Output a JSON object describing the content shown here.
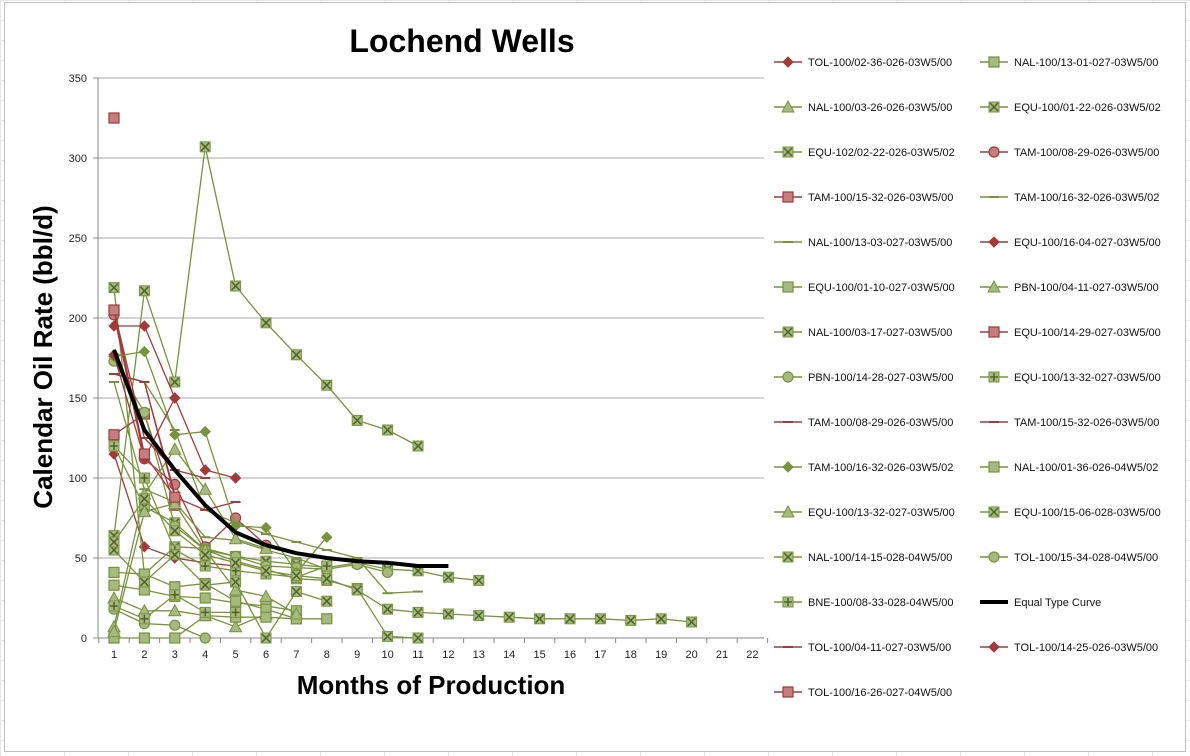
{
  "chart_data": {
    "type": "line",
    "title": "Lochend Wells",
    "xlabel": "Months of Production",
    "ylabel": "Calendar Oil Rate (bbl/d)",
    "xlim": [
      1,
      22
    ],
    "ylim": [
      0,
      350
    ],
    "y_ticks": [
      0,
      50,
      100,
      150,
      200,
      250,
      300,
      350
    ],
    "x_ticks": [
      1,
      2,
      3,
      4,
      5,
      6,
      7,
      8,
      9,
      10,
      11,
      12,
      13,
      14,
      15,
      16,
      17,
      18,
      19,
      20,
      21,
      22
    ],
    "gridlines": "horizontal",
    "legend_position": "right",
    "series": [
      {
        "name": "TOL-100/02-36-026-03W5/00",
        "color": "#a33a3a",
        "marker": "diamond",
        "x": [
          1,
          2,
          3,
          4,
          5
        ],
        "values": [
          115,
          57,
          50,
          47,
          45
        ]
      },
      {
        "name": "NAL-100/13-01-027-03W5/00",
        "color": "#77933c",
        "marker": "square",
        "x": [
          1,
          2,
          3,
          4,
          5,
          6,
          7
        ],
        "values": [
          33,
          30,
          26,
          25,
          22,
          20,
          17
        ]
      },
      {
        "name": "NAL-100/03-26-026-03W5/00",
        "color": "#77933c",
        "marker": "triangle",
        "x": [
          1,
          2,
          3,
          4,
          5,
          6
        ],
        "values": [
          25,
          17,
          17,
          14,
          7,
          15
        ]
      },
      {
        "name": "EQU-100/01-22-026-03W5/02",
        "color": "#77933c",
        "marker": "xbox",
        "x": [
          1,
          2,
          3,
          4,
          5,
          6,
          7,
          8,
          9,
          10,
          11,
          12,
          13
        ],
        "values": [
          219,
          40,
          57,
          56,
          51,
          48,
          46,
          44,
          47,
          43,
          42,
          38,
          36
        ]
      },
      {
        "name": "EQU-102/02-22-026-03W5/02",
        "color": "#77933c",
        "marker": "xbox",
        "x": [
          1,
          2,
          3,
          4,
          5,
          6,
          7,
          8,
          9,
          10,
          11
        ],
        "values": [
          64,
          217,
          160,
          307,
          220,
          197,
          177,
          158,
          136,
          130,
          120
        ]
      },
      {
        "name": "TAM-100/08-29-026-03W5/00",
        "color": "#a33a3a",
        "marker": "circle",
        "x": [
          1,
          2,
          3,
          4,
          5,
          6
        ],
        "values": [
          202,
          112,
          96,
          57,
          75,
          58
        ]
      },
      {
        "name": "TAM-100/15-32-026-03W5/00",
        "color": "#a33a3a",
        "marker": "square",
        "x": [
          1,
          2,
          3
        ],
        "values": [
          127,
          140,
          83
        ]
      },
      {
        "name": "TAM-100/16-32-026-03W5/02",
        "color": "#77933c",
        "marker": "dash",
        "x": [
          1,
          2,
          3,
          4,
          5,
          6,
          7,
          8
        ],
        "values": [
          160,
          93,
          85,
          63,
          61,
          55,
          50,
          43
        ]
      },
      {
        "name": "NAL-100/13-03-027-03W5/00",
        "color": "#77933c",
        "marker": "dash",
        "x": [
          1,
          2,
          3,
          4,
          5,
          6,
          7,
          8,
          9,
          10,
          11
        ],
        "values": [
          165,
          160,
          130,
          80,
          72,
          65,
          60,
          55,
          50,
          28,
          29
        ]
      },
      {
        "name": "EQU-100/16-04-027-03W5/00",
        "color": "#a33a3a",
        "marker": "diamond",
        "x": [
          1,
          2,
          3,
          4,
          5
        ],
        "values": [
          195,
          195,
          150,
          105,
          100
        ]
      },
      {
        "name": "EQU-100/01-10-027-03W5/00",
        "color": "#77933c",
        "marker": "square",
        "x": [
          1,
          2,
          3,
          4,
          5,
          6,
          7
        ],
        "values": [
          41,
          40,
          32,
          34,
          23,
          18,
          12
        ]
      },
      {
        "name": "PBN-100/04-11-027-03W5/00",
        "color": "#77933c",
        "marker": "triangle",
        "x": [
          1,
          2,
          3,
          4,
          5,
          6
        ],
        "values": [
          7,
          90,
          118,
          93,
          62,
          56
        ]
      },
      {
        "name": "NAL-100/03-17-027-03W5/00",
        "color": "#77933c",
        "marker": "xbox",
        "x": [
          1,
          2,
          3,
          4,
          5,
          6,
          7,
          8,
          9,
          10,
          11
        ],
        "values": [
          120,
          82,
          72,
          55,
          48,
          43,
          37,
          36,
          31,
          1,
          0
        ]
      },
      {
        "name": "EQU-100/14-29-027-03W5/00",
        "color": "#a33a3a",
        "marker": "square",
        "x": [
          1
        ],
        "values": [
          325
        ]
      },
      {
        "name": "PBN-100/14-28-027-03W5/00",
        "color": "#77933c",
        "marker": "circle",
        "x": [
          1,
          2,
          3,
          4,
          5,
          6,
          7,
          8,
          9,
          10
        ],
        "values": [
          173,
          141,
          70,
          55,
          51,
          45,
          44,
          43,
          46,
          41
        ]
      },
      {
        "name": "EQU-100/13-32-027-03W5/00",
        "color": "#77933c",
        "marker": "plus",
        "x": [
          1,
          2,
          3,
          4,
          5,
          6,
          7,
          8
        ],
        "values": [
          120,
          100,
          55,
          45,
          42,
          40,
          38,
          45
        ]
      },
      {
        "name": "TAM-100/08-29-026-03W5/00",
        "color": "#a33a3a",
        "marker": "dash",
        "x": [
          1,
          2,
          3,
          4,
          5
        ],
        "values": [
          165,
          160,
          88,
          80,
          85
        ]
      },
      {
        "name": "TAM-100/15-32-026-03W5/00",
        "color": "#a33a3a",
        "marker": "dash",
        "x": [
          1,
          2,
          3,
          4
        ],
        "values": [
          205,
          125,
          105,
          100
        ]
      },
      {
        "name": "TAM-100/16-32-026-03W5/02",
        "color": "#77933c",
        "marker": "diamond",
        "x": [
          1,
          2,
          3,
          4,
          5,
          6,
          7,
          8
        ],
        "values": [
          176,
          179,
          127,
          129,
          70,
          69,
          41,
          63
        ]
      },
      {
        "name": "NAL-100/01-36-026-04W5/02",
        "color": "#77933c",
        "marker": "square",
        "x": [
          1,
          2,
          3,
          4,
          5,
          6,
          7,
          8
        ],
        "values": [
          0,
          0,
          0,
          14,
          13,
          13,
          12,
          12
        ]
      },
      {
        "name": "EQU-100/13-32-027-03W5/00",
        "color": "#77933c",
        "marker": "triangle",
        "x": [
          1,
          2,
          3,
          4,
          5,
          6,
          7
        ],
        "values": [
          4,
          79,
          84,
          55,
          30,
          26,
          15
        ]
      },
      {
        "name": "EQU-100/15-06-028-03W5/00",
        "color": "#77933c",
        "marker": "xbox",
        "x": [
          1,
          2,
          3,
          4,
          5,
          6,
          7,
          8
        ],
        "values": [
          55,
          35,
          52,
          33,
          35,
          0,
          29,
          23
        ]
      },
      {
        "name": "NAL-100/14-15-028-04W5/00",
        "color": "#77933c",
        "marker": "xbox",
        "x": [
          1,
          2,
          3,
          4,
          5,
          6,
          7,
          8,
          9,
          10,
          11,
          12,
          13,
          14,
          15,
          16,
          17,
          18,
          19,
          20
        ],
        "values": [
          60,
          87,
          67,
          52,
          47,
          42,
          39,
          37,
          30,
          18,
          16,
          15,
          14,
          13,
          12,
          12,
          12,
          11,
          12,
          10
        ]
      },
      {
        "name": "TOL-100/15-34-028-04W5/00",
        "color": "#77933c",
        "marker": "circle",
        "x": [
          1,
          2,
          3,
          4
        ],
        "values": [
          18,
          9,
          8,
          0
        ]
      },
      {
        "name": "BNE-100/08-33-028-04W5/00",
        "color": "#77933c",
        "marker": "plus",
        "x": [
          1,
          2,
          3,
          4,
          5
        ],
        "values": [
          20,
          12,
          27,
          16,
          16
        ]
      },
      {
        "name": "Equal Type Curve",
        "color": "#000000",
        "marker": "thick",
        "x": [
          1,
          2,
          3,
          4,
          5,
          6,
          7,
          8,
          9,
          10,
          11,
          12
        ],
        "values": [
          180,
          130,
          105,
          83,
          66,
          58,
          53,
          50,
          48,
          47,
          45,
          45
        ]
      },
      {
        "name": "TOL-100/04-11-027-03W5/00",
        "color": "#a33a3a",
        "marker": "dash",
        "x": [
          1,
          2,
          3
        ],
        "values": [
          165,
          160,
          90
        ]
      },
      {
        "name": "TOL-100/14-25-026-03W5/00",
        "color": "#a33a3a",
        "marker": "diamond",
        "x": [
          1,
          2,
          3
        ],
        "values": [
          177,
          112,
          150
        ]
      },
      {
        "name": "TOL-100/16-26-027-04W5/00",
        "color": "#a33a3a",
        "marker": "square",
        "x": [
          1,
          2,
          3
        ],
        "values": [
          205,
          115,
          88
        ]
      }
    ]
  }
}
